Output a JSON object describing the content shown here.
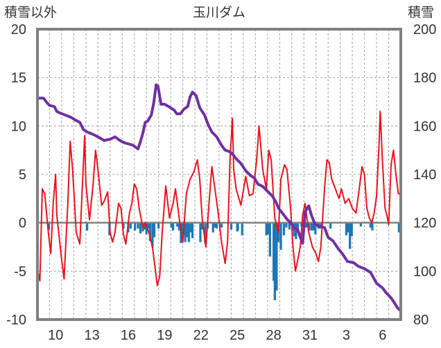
{
  "chart_data": {
    "type": "line",
    "title": "玉川ダム",
    "y_left_label": "積雪以外",
    "y_right_label": "積雪",
    "y_left_range": [
      -10,
      20
    ],
    "y_left_ticks": [
      20,
      15,
      10,
      5,
      0,
      -5,
      -10
    ],
    "y_right_range": [
      80,
      200
    ],
    "y_right_ticks": [
      200,
      180,
      160,
      140,
      120,
      100,
      80
    ],
    "x_range": [
      0,
      30
    ],
    "x_ticks": [
      {
        "x": 1.5,
        "label": "10"
      },
      {
        "x": 4.5,
        "label": "13"
      },
      {
        "x": 7.5,
        "label": "16"
      },
      {
        "x": 10.5,
        "label": "19"
      },
      {
        "x": 13.5,
        "label": "22"
      },
      {
        "x": 16.5,
        "label": "25"
      },
      {
        "x": 19.5,
        "label": "28"
      },
      {
        "x": 22.5,
        "label": "31"
      },
      {
        "x": 25.5,
        "label": "3"
      },
      {
        "x": 28.5,
        "label": "6"
      }
    ],
    "gridlines": "vertical dashed daily, horizontal dashed every 5",
    "colors": {
      "temperature": "#e8121e",
      "snow_depth": "#7030a0",
      "precip": "#1f77b4",
      "zero_line": "#808080",
      "frame": "#808080"
    },
    "series": [
      {
        "axis": "left",
        "style": "line",
        "color": "#e8121e",
        "points": [
          [
            0.0,
            -4.8
          ],
          [
            0.2,
            -6.0
          ],
          [
            0.4,
            3.5
          ],
          [
            0.6,
            3.0
          ],
          [
            0.9,
            -1.0
          ],
          [
            1.1,
            -3.2
          ],
          [
            1.3,
            2.0
          ],
          [
            1.5,
            5.0
          ],
          [
            1.6,
            0.8
          ],
          [
            2.0,
            -3.8
          ],
          [
            2.2,
            -5.8
          ],
          [
            2.5,
            1.8
          ],
          [
            2.7,
            8.4
          ],
          [
            2.9,
            5.5
          ],
          [
            3.2,
            -1.0
          ],
          [
            3.5,
            -2.2
          ],
          [
            3.7,
            3.5
          ],
          [
            3.9,
            9.0
          ],
          [
            4.0,
            4.0
          ],
          [
            4.3,
            0.3
          ],
          [
            4.6,
            4.0
          ],
          [
            4.8,
            7.5
          ],
          [
            5.0,
            5.5
          ],
          [
            5.3,
            1.8
          ],
          [
            5.5,
            2.2
          ],
          [
            5.8,
            3.2
          ],
          [
            6.0,
            -1.0
          ],
          [
            6.2,
            -2.0
          ],
          [
            6.4,
            -1.0
          ],
          [
            6.7,
            2.0
          ],
          [
            6.9,
            1.5
          ],
          [
            7.1,
            -1.2
          ],
          [
            7.3,
            -2.2
          ],
          [
            7.6,
            1.0
          ],
          [
            7.8,
            2.0
          ],
          [
            8.0,
            4.0
          ],
          [
            8.2,
            3.5
          ],
          [
            8.4,
            1.5
          ],
          [
            8.7,
            -0.5
          ],
          [
            8.9,
            0.0
          ],
          [
            9.2,
            -1.0
          ],
          [
            9.5,
            -2.5
          ],
          [
            9.7,
            -4.5
          ],
          [
            9.9,
            -6.5
          ],
          [
            10.1,
            -5.5
          ],
          [
            10.3,
            -1.0
          ],
          [
            10.6,
            3.8
          ],
          [
            10.9,
            0.5
          ],
          [
            11.2,
            2.0
          ],
          [
            11.4,
            3.5
          ],
          [
            11.7,
            0.5
          ],
          [
            12.0,
            -2.0
          ],
          [
            12.3,
            3.0
          ],
          [
            12.6,
            4.5
          ],
          [
            12.9,
            5.2
          ],
          [
            13.2,
            6.5
          ],
          [
            13.4,
            4.5
          ],
          [
            13.6,
            0.5
          ],
          [
            13.9,
            -2.5
          ],
          [
            14.2,
            2.5
          ],
          [
            14.4,
            5.8
          ],
          [
            14.6,
            4.0
          ],
          [
            14.9,
            1.2
          ],
          [
            15.2,
            -2.0
          ],
          [
            15.5,
            -4.2
          ],
          [
            15.7,
            -2.0
          ],
          [
            15.9,
            6.5
          ],
          [
            16.1,
            10.8
          ],
          [
            16.2,
            5.5
          ],
          [
            16.4,
            3.5
          ],
          [
            16.8,
            1.8
          ],
          [
            17.2,
            4.8
          ],
          [
            17.5,
            2.8
          ],
          [
            17.8,
            3.0
          ],
          [
            18.1,
            6.5
          ],
          [
            18.3,
            10.0
          ],
          [
            18.6,
            5.5
          ],
          [
            18.9,
            3.5
          ],
          [
            19.1,
            7.5
          ],
          [
            19.3,
            6.5
          ],
          [
            19.6,
            0.5
          ],
          [
            19.9,
            -1.0
          ],
          [
            20.1,
            4.5
          ],
          [
            20.4,
            6.0
          ],
          [
            20.6,
            5.5
          ],
          [
            20.9,
            1.5
          ],
          [
            21.1,
            -2.5
          ],
          [
            21.3,
            -5.0
          ],
          [
            21.5,
            -3.8
          ],
          [
            21.7,
            -2.5
          ],
          [
            21.9,
            0.8
          ],
          [
            22.1,
            2.0
          ],
          [
            22.4,
            -1.0
          ],
          [
            22.7,
            -2.5
          ],
          [
            23.0,
            -3.2
          ],
          [
            23.2,
            -4.0
          ],
          [
            23.4,
            -2.5
          ],
          [
            23.7,
            3.5
          ],
          [
            23.9,
            6.5
          ],
          [
            24.1,
            6.2
          ],
          [
            24.3,
            4.5
          ],
          [
            24.6,
            3.5
          ],
          [
            24.9,
            2.5
          ],
          [
            25.1,
            3.5
          ],
          [
            25.4,
            2.0
          ],
          [
            25.7,
            2.5
          ],
          [
            26.0,
            1.5
          ],
          [
            26.3,
            1.0
          ],
          [
            26.6,
            3.8
          ],
          [
            26.8,
            5.8
          ],
          [
            27.0,
            5.0
          ],
          [
            27.2,
            1.5
          ],
          [
            27.4,
            0.5
          ],
          [
            27.6,
            0.0
          ],
          [
            27.8,
            1.0
          ],
          [
            28.0,
            2.8
          ],
          [
            28.2,
            8.0
          ],
          [
            28.3,
            11.5
          ],
          [
            28.5,
            6.0
          ],
          [
            28.7,
            1.5
          ],
          [
            28.9,
            0.5
          ],
          [
            29.0,
            -0.2
          ],
          [
            29.2,
            6.0
          ],
          [
            29.4,
            7.5
          ],
          [
            29.6,
            5.0
          ],
          [
            29.8,
            3.0
          ],
          [
            30.0,
            3.0
          ]
        ]
      },
      {
        "axis": "right",
        "style": "line",
        "color": "#7030a0",
        "points": [
          [
            0.0,
            171.5
          ],
          [
            0.5,
            171.5
          ],
          [
            0.8,
            169.5
          ],
          [
            1.0,
            168.5
          ],
          [
            1.4,
            168.0
          ],
          [
            1.6,
            166.0
          ],
          [
            1.8,
            165.5
          ],
          [
            2.3,
            164.5
          ],
          [
            2.8,
            163.5
          ],
          [
            3.1,
            162.5
          ],
          [
            3.5,
            161.5
          ],
          [
            3.8,
            158.5
          ],
          [
            4.1,
            157.5
          ],
          [
            4.6,
            156.5
          ],
          [
            5.0,
            155.5
          ],
          [
            5.5,
            154.0
          ],
          [
            6.0,
            154.5
          ],
          [
            6.4,
            155.5
          ],
          [
            6.8,
            154.0
          ],
          [
            7.2,
            153.0
          ],
          [
            7.6,
            152.5
          ],
          [
            7.9,
            152.0
          ],
          [
            8.3,
            150.5
          ],
          [
            8.5,
            153.5
          ],
          [
            8.7,
            157.0
          ],
          [
            8.9,
            161.5
          ],
          [
            9.1,
            162.0
          ],
          [
            9.4,
            164.5
          ],
          [
            9.6,
            169.5
          ],
          [
            9.8,
            177.0
          ],
          [
            9.95,
            176.5
          ],
          [
            10.2,
            169.0
          ],
          [
            10.5,
            169.0
          ],
          [
            11.0,
            167.5
          ],
          [
            11.3,
            166.5
          ],
          [
            11.5,
            165.0
          ],
          [
            11.8,
            165.0
          ],
          [
            12.1,
            167.0
          ],
          [
            12.4,
            168.0
          ],
          [
            12.6,
            172.0
          ],
          [
            12.8,
            174.0
          ],
          [
            13.1,
            172.5
          ],
          [
            13.4,
            167.5
          ],
          [
            13.8,
            164.5
          ],
          [
            14.1,
            160.5
          ],
          [
            14.4,
            157.5
          ],
          [
            14.8,
            155.5
          ],
          [
            15.2,
            152.0
          ],
          [
            15.5,
            150.0
          ],
          [
            15.8,
            149.5
          ],
          [
            16.1,
            148.5
          ],
          [
            16.4,
            146.5
          ],
          [
            16.8,
            144.5
          ],
          [
            17.2,
            141.5
          ],
          [
            17.6,
            139.5
          ],
          [
            17.9,
            138.5
          ],
          [
            18.2,
            136.0
          ],
          [
            18.6,
            135.0
          ],
          [
            19.0,
            133.0
          ],
          [
            19.4,
            131.0
          ],
          [
            19.7,
            128.5
          ],
          [
            19.9,
            126.0
          ],
          [
            20.3,
            123.5
          ],
          [
            20.6,
            121.5
          ],
          [
            20.9,
            120.0
          ],
          [
            21.2,
            118.0
          ],
          [
            21.5,
            117.0
          ],
          [
            21.7,
            114.0
          ],
          [
            21.9,
            111.5
          ],
          [
            22.1,
            124.5
          ],
          [
            22.4,
            127.0
          ],
          [
            22.6,
            123.5
          ],
          [
            22.9,
            119.5
          ],
          [
            23.3,
            118.5
          ],
          [
            23.7,
            118.0
          ],
          [
            24.0,
            114.0
          ],
          [
            24.4,
            112.5
          ],
          [
            24.8,
            109.5
          ],
          [
            25.2,
            107.0
          ],
          [
            25.6,
            104.0
          ],
          [
            26.1,
            103.5
          ],
          [
            26.5,
            102.0
          ],
          [
            27.0,
            101.0
          ],
          [
            27.5,
            99.5
          ],
          [
            28.0,
            95.0
          ],
          [
            28.5,
            93.0
          ],
          [
            28.8,
            91.0
          ],
          [
            29.1,
            89.5
          ],
          [
            29.4,
            87.5
          ],
          [
            29.7,
            85.0
          ],
          [
            30.0,
            83.5
          ]
        ]
      },
      {
        "axis": "left",
        "style": "bar",
        "color": "#1f77b4",
        "points": [
          [
            0.95,
            -0.7
          ],
          [
            4.1,
            -0.8
          ],
          [
            5.95,
            -1.3
          ],
          [
            7.1,
            -0.6
          ],
          [
            7.5,
            -1.0
          ],
          [
            7.7,
            -0.6
          ],
          [
            8.05,
            -0.8
          ],
          [
            8.3,
            -0.6
          ],
          [
            8.5,
            -1.1
          ],
          [
            8.7,
            -0.9
          ],
          [
            8.85,
            -0.7
          ],
          [
            9.0,
            -1.2
          ],
          [
            9.15,
            -0.6
          ],
          [
            9.3,
            -1.9
          ],
          [
            9.5,
            -2.5
          ],
          [
            9.65,
            -1.5
          ],
          [
            10.0,
            -0.6
          ],
          [
            11.05,
            -0.5
          ],
          [
            11.2,
            -0.8
          ],
          [
            11.55,
            -0.4
          ],
          [
            11.7,
            -0.8
          ],
          [
            11.85,
            -2.1
          ],
          [
            12.0,
            -1.2
          ],
          [
            12.2,
            -2.0
          ],
          [
            12.35,
            -1.5
          ],
          [
            12.5,
            -2.0
          ],
          [
            12.65,
            -1.0
          ],
          [
            12.8,
            -1.6
          ],
          [
            13.45,
            -2.0
          ],
          [
            13.6,
            -0.7
          ],
          [
            13.85,
            -2.1
          ],
          [
            14.05,
            -0.6
          ],
          [
            14.5,
            -1.0
          ],
          [
            14.65,
            -0.5
          ],
          [
            14.8,
            -0.6
          ],
          [
            15.2,
            -0.5
          ],
          [
            16.0,
            -0.7
          ],
          [
            16.5,
            -0.9
          ],
          [
            16.55,
            -0.8
          ],
          [
            16.9,
            -1.3
          ],
          [
            18.9,
            -1.3
          ],
          [
            19.05,
            -1.2
          ],
          [
            19.2,
            -3.5
          ],
          [
            19.5,
            -6.0
          ],
          [
            19.6,
            -8.0
          ],
          [
            19.75,
            -7.0
          ],
          [
            19.9,
            -2.0
          ],
          [
            20.1,
            -2.8
          ],
          [
            20.35,
            -1.3
          ],
          [
            20.55,
            -0.5
          ],
          [
            20.8,
            -0.7
          ],
          [
            21.05,
            -0.8
          ],
          [
            21.2,
            -1.4
          ],
          [
            21.35,
            -1.7
          ],
          [
            21.5,
            -1.0
          ],
          [
            21.8,
            -0.4
          ],
          [
            22.0,
            -0.6
          ],
          [
            22.2,
            -0.5
          ],
          [
            22.45,
            -0.8
          ],
          [
            22.65,
            -0.8
          ],
          [
            22.8,
            -0.8
          ],
          [
            22.95,
            -1.2
          ],
          [
            23.2,
            -0.6
          ],
          [
            23.4,
            -0.6
          ],
          [
            24.2,
            -0.6
          ],
          [
            25.5,
            -1.3
          ],
          [
            25.65,
            -1.0
          ],
          [
            25.8,
            -2.7
          ],
          [
            25.95,
            -1.4
          ],
          [
            26.7,
            -0.4
          ],
          [
            27.5,
            -0.5
          ],
          [
            27.65,
            -0.8
          ],
          [
            29.85,
            -1.0
          ]
        ]
      }
    ]
  }
}
